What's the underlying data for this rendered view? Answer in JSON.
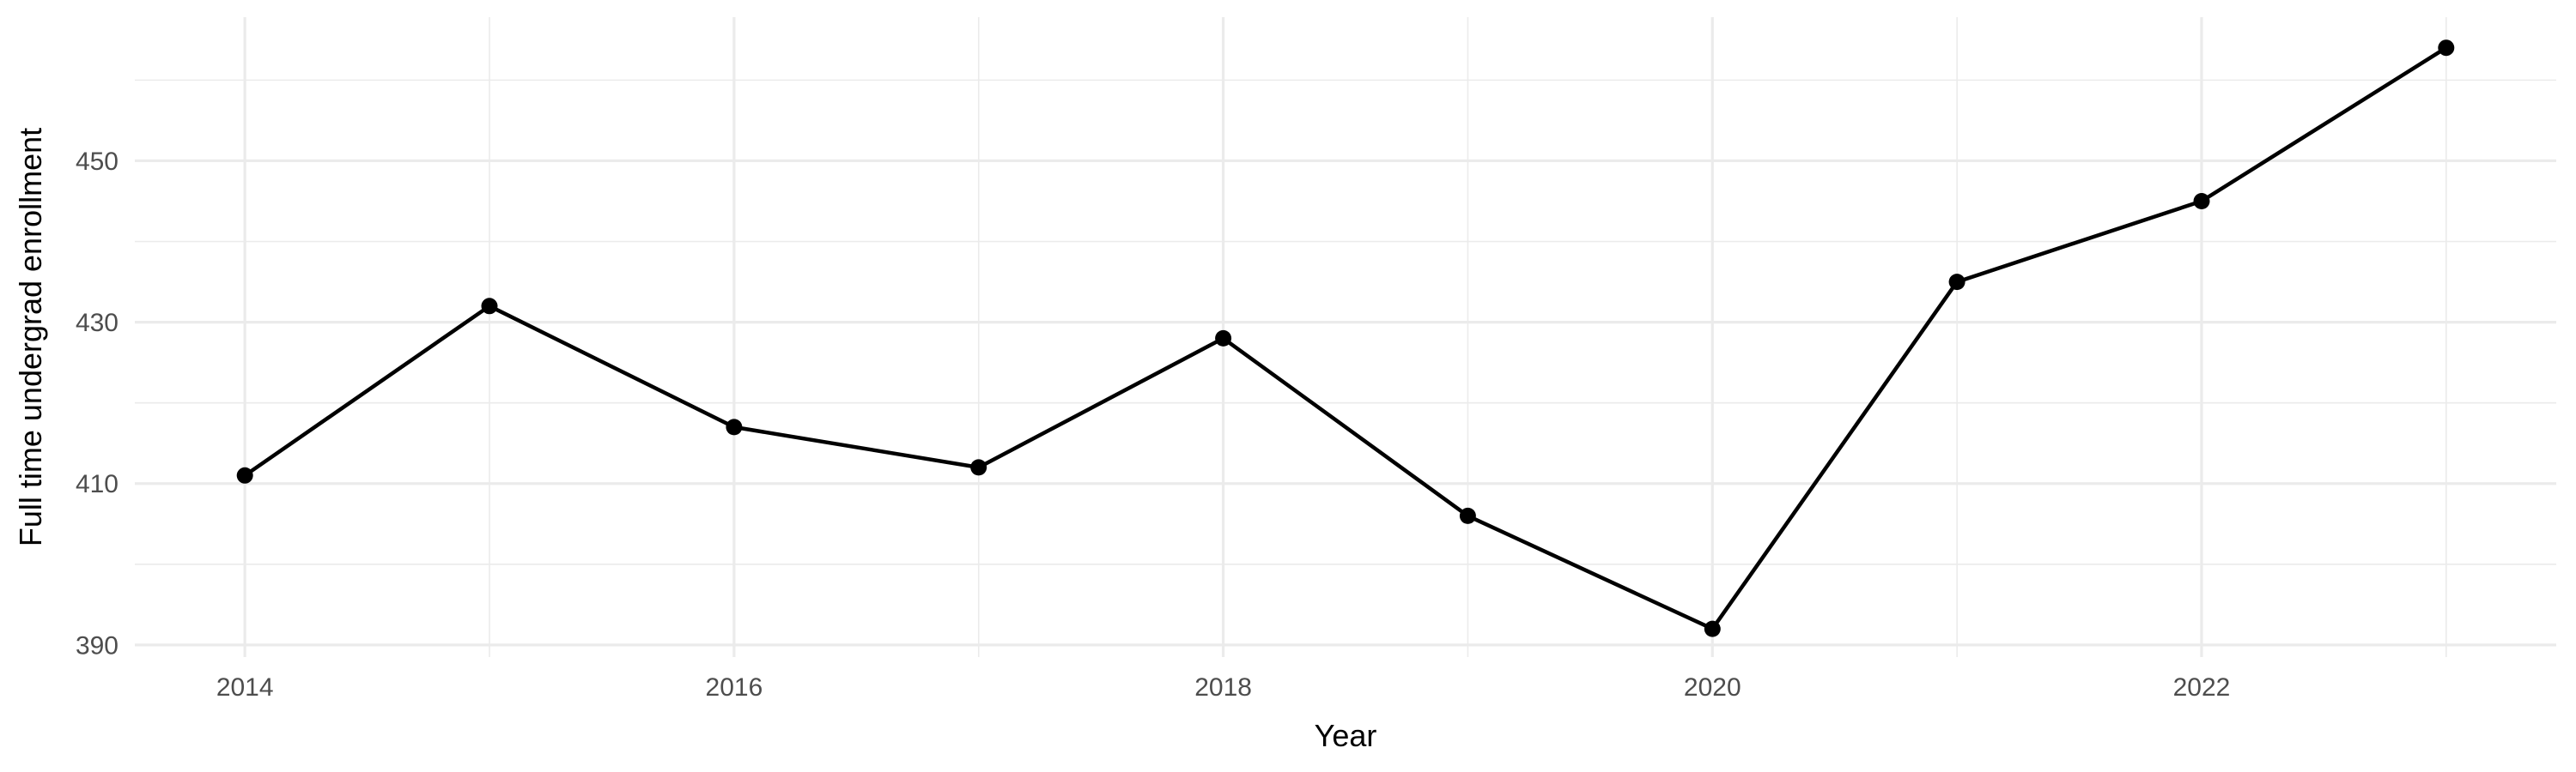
{
  "chart_data": {
    "type": "line",
    "title": "",
    "xlabel": "Year",
    "ylabel": "Full time undergrad enrollment",
    "x": [
      2014,
      2015,
      2016,
      2017,
      2018,
      2019,
      2020,
      2021,
      2022,
      2023
    ],
    "series": [
      {
        "name": "Full time undergrad enrollment",
        "values": [
          411,
          432,
          417,
          412,
          428,
          406,
          392,
          435,
          445,
          464
        ]
      }
    ],
    "x_major_ticks": [
      2014,
      2016,
      2018,
      2020,
      2022
    ],
    "x_minor_gridlines": [
      2015,
      2017,
      2019,
      2021,
      2023
    ],
    "y_major_ticks": [
      390,
      410,
      430,
      450
    ],
    "y_minor_gridlines": [
      400,
      420,
      440,
      460
    ],
    "xlim": [
      2013.55,
      2023.45
    ],
    "ylim": [
      388.5,
      467.8
    ],
    "grid": "major+minor",
    "legend": "none",
    "point_marker": "filled-circle"
  },
  "colors": {
    "background": "#FFFFFF",
    "line": "#000000",
    "point": "#000000",
    "grid": "#EBEBEB",
    "tick_label": "#4D4D4D",
    "axis_title": "#000000"
  }
}
